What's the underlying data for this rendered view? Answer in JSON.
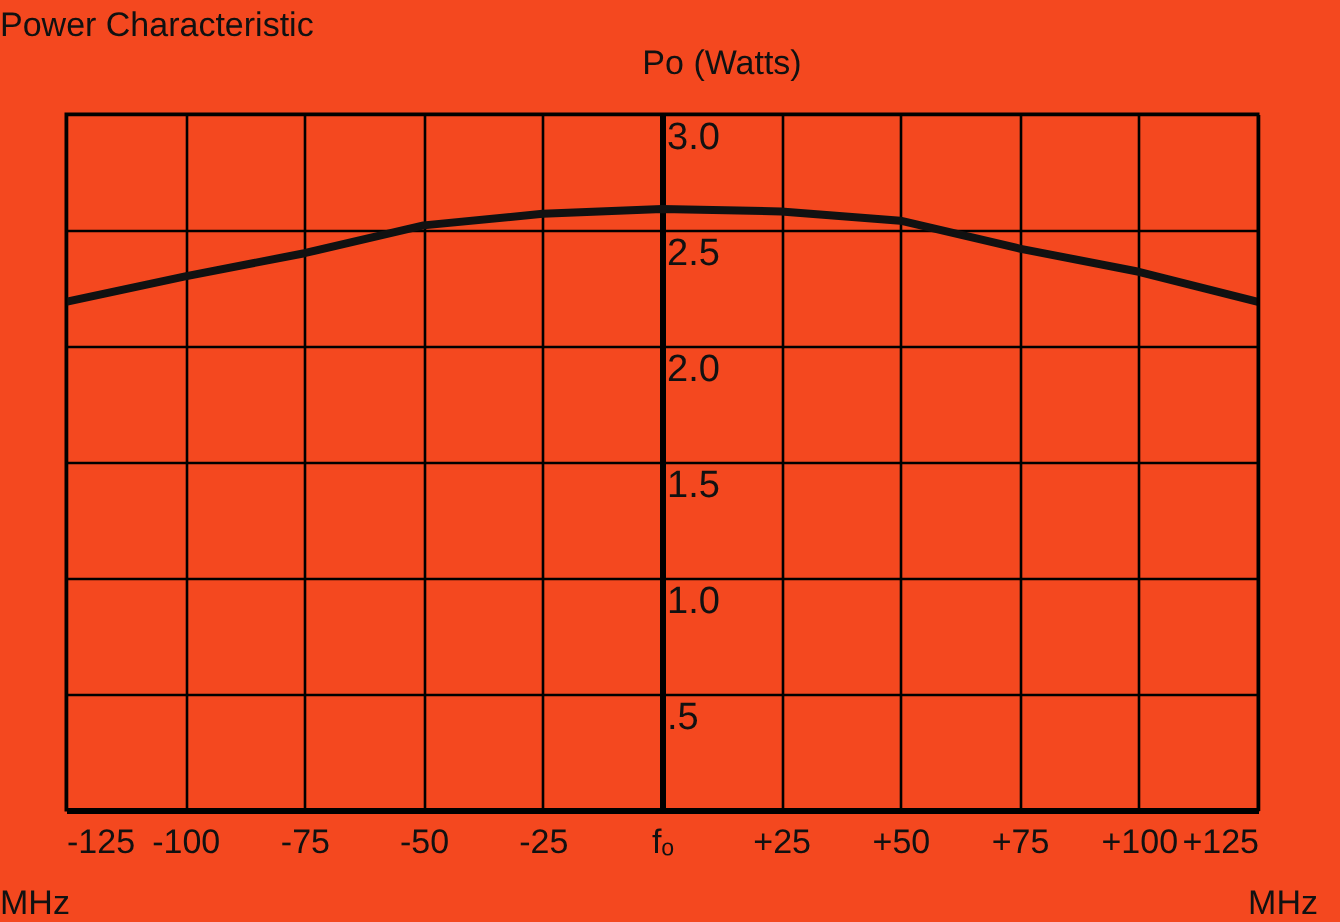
{
  "chart_data": {
    "type": "line",
    "title": "Power Characteristic",
    "ylabel": "Po (Watts)",
    "annotations": [
      "MHz",
      "MHz"
    ],
    "x": [
      -125,
      -100,
      -75,
      -50,
      -25,
      0,
      25,
      50,
      75,
      100,
      125
    ],
    "series": [
      {
        "color": "#111111",
        "values": [
          2.19,
          2.3,
          2.4,
          2.52,
          2.57,
          2.59,
          2.58,
          2.54,
          2.42,
          2.32,
          2.19
        ]
      }
    ],
    "xlim": [
      -125,
      125
    ],
    "xticks": [
      -125,
      -100,
      -75,
      -50,
      -25,
      {
        "value": 0,
        "label": "fₒ"
      },
      {
        "value": 25,
        "label": "+25"
      },
      {
        "value": 50,
        "label": "+50"
      },
      {
        "value": 75,
        "label": "+75"
      },
      {
        "value": 100,
        "label": "+100"
      },
      {
        "value": 125,
        "label": "+125"
      }
    ],
    "ylim": [
      0,
      3.0
    ],
    "yticks": [
      {
        "value": 0,
        "label": null
      },
      {
        "value": 0.5,
        "label": ".5"
      },
      {
        "value": 1.0,
        "label": "1.0"
      },
      {
        "value": 1.5,
        "label": "1.5"
      },
      {
        "value": 2.0,
        "label": "2.0"
      },
      {
        "value": 2.5,
        "label": "2.5"
      },
      {
        "value": 3.0,
        "label": "3.0"
      }
    ],
    "grid": true,
    "marker": "none",
    "line_style": "solid"
  }
}
